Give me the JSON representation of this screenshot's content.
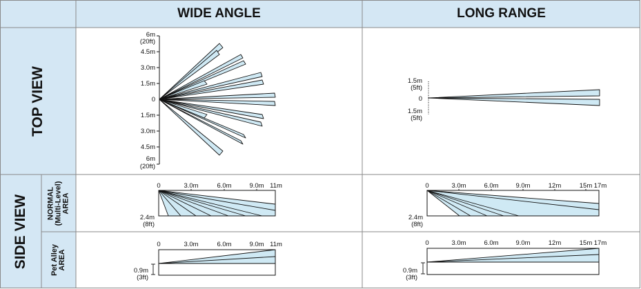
{
  "headers": {
    "wide": "WIDE ANGLE",
    "long": "LONG RANGE"
  },
  "rows": {
    "top_view": "TOP VIEW",
    "side_view": "SIDE VIEW",
    "normal_line1": "NORMAL",
    "normal_line2": "(Multi-Level)",
    "normal_line3": "AREA",
    "pet_line1": "Pet Alley",
    "pet_line2": "AREA"
  },
  "top_wide": {
    "labels": [
      [
        "6m",
        "(20ft)"
      ],
      [
        "4.5m"
      ],
      [
        "3.0m"
      ],
      [
        "1.5m"
      ],
      [
        "0"
      ],
      [
        "1.5m"
      ],
      [
        "3.0m"
      ],
      [
        "4.5m"
      ],
      [
        "6m",
        "(20ft)"
      ]
    ]
  },
  "top_long": {
    "labels": [
      [
        "1.5m",
        "(5ft)"
      ],
      [
        "0"
      ],
      [
        "1.5m",
        "(5ft)"
      ]
    ]
  },
  "side_wide": {
    "ticks": [
      "0",
      "3.0m",
      "6.0m",
      "9.0m",
      "11m"
    ],
    "height_label": [
      "2.4m",
      "(8ft)"
    ],
    "pet_height_label": [
      "0.9m",
      "(3ft)"
    ]
  },
  "side_long": {
    "ticks": [
      "0",
      "3.0m",
      "6.0m",
      "9.0m",
      "12m",
      "15m",
      "17m"
    ],
    "height_label": [
      "2.4m",
      "(8ft)"
    ],
    "pet_height_label": [
      "0.9m",
      "(3ft)"
    ]
  },
  "colors": {
    "header_bg": "#d4e7f4",
    "beam_fill": "#cfe9f4",
    "line": "#111111",
    "grid": "#8a8a8a"
  }
}
